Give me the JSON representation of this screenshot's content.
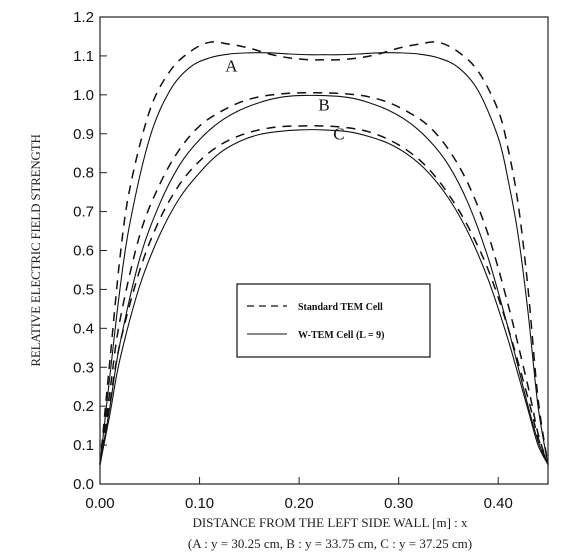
{
  "chart_data": {
    "type": "line",
    "xlabel": "DISTANCE FROM THE LEFT SIDE WALL [m] : x",
    "xlabel_sub": "(A : y = 30.25 cm, B : y = 33.75 cm, C : y = 37.25 cm)",
    "ylabel": "RELATIVE ELECTRIC FIELD STRENGTH",
    "xlim": [
      0.0,
      0.45
    ],
    "ylim": [
      0.0,
      1.2
    ],
    "x_ticks": [
      0.0,
      0.1,
      0.2,
      0.3,
      0.4
    ],
    "x_tick_labels": [
      "0.00",
      "0.10",
      "0.20",
      "0.30",
      "0.40"
    ],
    "y_ticks": [
      0.0,
      0.1,
      0.2,
      0.3,
      0.4,
      0.5,
      0.6,
      0.7,
      0.8,
      0.9,
      1.0,
      1.1,
      1.2
    ],
    "y_tick_labels": [
      "0.0",
      "0.1",
      "0.2",
      "0.3",
      "0.4",
      "0.5",
      "0.6",
      "0.7",
      "0.8",
      "0.9",
      "1.0",
      "1.1",
      "1.2"
    ],
    "grid": false,
    "legend": {
      "placement": "center-right",
      "entries": [
        {
          "label": "Standard TEM Cell",
          "style": "dashed"
        },
        {
          "label": "W-TEM Cell (L = 9)",
          "style": "solid"
        }
      ]
    },
    "curve_labels": [
      {
        "text": "A",
        "x": 0.132,
        "y": 1.06
      },
      {
        "text": "B",
        "x": 0.225,
        "y": 0.96
      },
      {
        "text": "C",
        "x": 0.24,
        "y": 0.885
      }
    ],
    "series": [
      {
        "label": "A",
        "style": "dashed",
        "x": [
          0.0,
          0.01,
          0.02,
          0.03,
          0.05,
          0.07,
          0.09,
          0.11,
          0.13,
          0.15,
          0.17,
          0.19,
          0.21,
          0.225,
          0.24,
          0.26,
          0.28,
          0.3,
          0.32,
          0.34,
          0.36,
          0.38,
          0.4,
          0.41,
          0.42,
          0.43,
          0.44,
          0.45
        ],
        "y": [
          0.05,
          0.32,
          0.58,
          0.76,
          0.96,
          1.06,
          1.11,
          1.135,
          1.13,
          1.12,
          1.105,
          1.095,
          1.09,
          1.09,
          1.09,
          1.095,
          1.105,
          1.12,
          1.13,
          1.135,
          1.11,
          1.06,
          0.96,
          0.86,
          0.72,
          0.5,
          0.22,
          0.05
        ]
      },
      {
        "label": "A",
        "style": "solid",
        "x": [
          0.0,
          0.01,
          0.02,
          0.03,
          0.05,
          0.07,
          0.09,
          0.11,
          0.13,
          0.15,
          0.17,
          0.19,
          0.21,
          0.225,
          0.24,
          0.26,
          0.28,
          0.3,
          0.32,
          0.34,
          0.36,
          0.38,
          0.4,
          0.41,
          0.42,
          0.43,
          0.44,
          0.45
        ],
        "y": [
          0.05,
          0.28,
          0.5,
          0.67,
          0.89,
          1.01,
          1.07,
          1.095,
          1.105,
          1.108,
          1.108,
          1.105,
          1.103,
          1.103,
          1.103,
          1.105,
          1.108,
          1.108,
          1.105,
          1.095,
          1.07,
          1.01,
          0.89,
          0.78,
          0.64,
          0.44,
          0.2,
          0.05
        ]
      },
      {
        "label": "B",
        "style": "dashed",
        "x": [
          0.0,
          0.01,
          0.02,
          0.04,
          0.06,
          0.08,
          0.1,
          0.12,
          0.14,
          0.16,
          0.18,
          0.2,
          0.225,
          0.25,
          0.27,
          0.29,
          0.31,
          0.33,
          0.35,
          0.37,
          0.39,
          0.41,
          0.43,
          0.44,
          0.45
        ],
        "y": [
          0.05,
          0.24,
          0.42,
          0.64,
          0.77,
          0.86,
          0.92,
          0.955,
          0.98,
          0.995,
          1.002,
          1.005,
          1.005,
          1.002,
          0.995,
          0.98,
          0.955,
          0.92,
          0.86,
          0.77,
          0.64,
          0.46,
          0.25,
          0.13,
          0.05
        ]
      },
      {
        "label": "B",
        "style": "solid",
        "x": [
          0.0,
          0.01,
          0.02,
          0.04,
          0.06,
          0.08,
          0.1,
          0.12,
          0.14,
          0.16,
          0.18,
          0.2,
          0.225,
          0.25,
          0.27,
          0.29,
          0.31,
          0.33,
          0.35,
          0.37,
          0.39,
          0.41,
          0.43,
          0.44,
          0.45
        ],
        "y": [
          0.05,
          0.2,
          0.36,
          0.58,
          0.72,
          0.82,
          0.885,
          0.93,
          0.96,
          0.98,
          0.993,
          0.998,
          0.998,
          0.993,
          0.98,
          0.96,
          0.93,
          0.885,
          0.82,
          0.72,
          0.58,
          0.4,
          0.2,
          0.11,
          0.05
        ]
      },
      {
        "label": "C",
        "style": "dashed",
        "x": [
          0.0,
          0.01,
          0.02,
          0.04,
          0.06,
          0.08,
          0.1,
          0.12,
          0.14,
          0.16,
          0.18,
          0.2,
          0.225,
          0.25,
          0.27,
          0.29,
          0.31,
          0.33,
          0.35,
          0.37,
          0.39,
          0.41,
          0.43,
          0.44,
          0.45
        ],
        "y": [
          0.05,
          0.21,
          0.36,
          0.55,
          0.68,
          0.77,
          0.83,
          0.87,
          0.895,
          0.91,
          0.918,
          0.92,
          0.92,
          0.915,
          0.905,
          0.885,
          0.855,
          0.81,
          0.745,
          0.66,
          0.55,
          0.4,
          0.22,
          0.12,
          0.05
        ]
      },
      {
        "label": "C",
        "style": "solid",
        "x": [
          0.0,
          0.01,
          0.02,
          0.04,
          0.06,
          0.08,
          0.1,
          0.12,
          0.14,
          0.16,
          0.18,
          0.2,
          0.225,
          0.25,
          0.27,
          0.29,
          0.31,
          0.33,
          0.35,
          0.37,
          0.39,
          0.41,
          0.43,
          0.44,
          0.45
        ],
        "y": [
          0.05,
          0.18,
          0.32,
          0.51,
          0.64,
          0.735,
          0.8,
          0.85,
          0.88,
          0.898,
          0.906,
          0.91,
          0.91,
          0.905,
          0.893,
          0.875,
          0.845,
          0.8,
          0.735,
          0.645,
          0.525,
          0.37,
          0.19,
          0.1,
          0.05
        ]
      }
    ]
  }
}
